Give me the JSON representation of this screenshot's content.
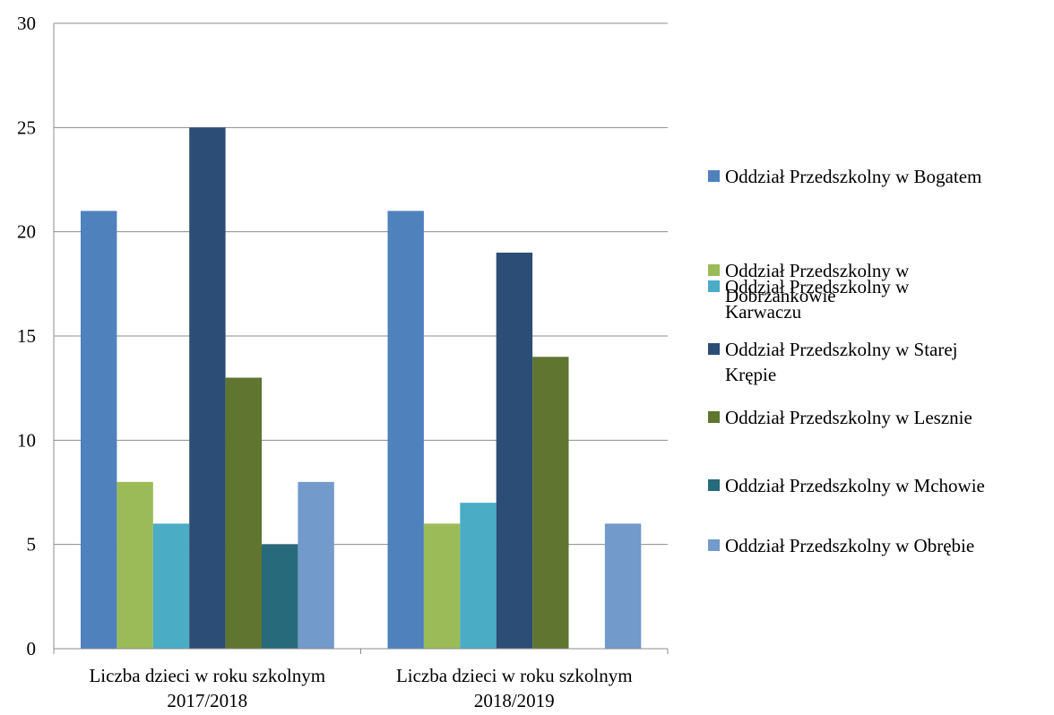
{
  "chart_data": {
    "type": "bar",
    "title": "",
    "xlabel": "",
    "ylabel": "",
    "ylim": [
      0,
      30
    ],
    "yticks": [
      0,
      5,
      10,
      15,
      20,
      25,
      30
    ],
    "grid": true,
    "legend_position": "right",
    "categories": [
      "Liczba dzieci w roku szkolnym 2017/2018",
      "Liczba dzieci w roku szkolnym 2018/2019"
    ],
    "category_lines": [
      [
        "Liczba dzieci w roku szkolnym",
        "2017/2018"
      ],
      [
        "Liczba dzieci w roku szkolnym",
        "2018/2019"
      ]
    ],
    "series": [
      {
        "name": "Oddział Przedszkolny w Bogatem",
        "name_lines": [
          "Oddział Przedszkolny w Bogatem"
        ],
        "color": "#4F81BD",
        "values": [
          21,
          21
        ]
      },
      {
        "name": "Oddział Przedszkolny w Dobrzankowie",
        "name_lines": [
          "Oddział Przedszkolny w",
          "Dobrzankowie"
        ],
        "color": "#9BBB59",
        "values": [
          8,
          6
        ]
      },
      {
        "name": "Oddział Przedszkolny w Karwaczu",
        "name_lines": [
          "Oddział Przedszkolny w",
          "Karwaczu"
        ],
        "color": "#4BACC6",
        "values": [
          6,
          7
        ]
      },
      {
        "name": "Oddział Przedszkolny w Starej Krępie",
        "name_lines": [
          "Oddział Przedszkolny w Starej",
          "Krępie"
        ],
        "color": "#2C4D75",
        "values": [
          25,
          19
        ]
      },
      {
        "name": "Oddział Przedszkolny w Lesznie",
        "name_lines": [
          "Oddział Przedszkolny w Lesznie"
        ],
        "color": "#5F7530",
        "values": [
          13,
          14
        ]
      },
      {
        "name": "Oddział Przedszkolny w Mchowie",
        "name_lines": [
          "Oddział Przedszkolny w Mchowie"
        ],
        "color": "#276A7C",
        "values": [
          5,
          0
        ]
      },
      {
        "name": "Oddział Przedszkolny w Obrębie",
        "name_lines": [
          "Oddział Przedszkolny w Obrębie"
        ],
        "color": "#729ACA",
        "values": [
          8,
          6
        ]
      }
    ]
  }
}
